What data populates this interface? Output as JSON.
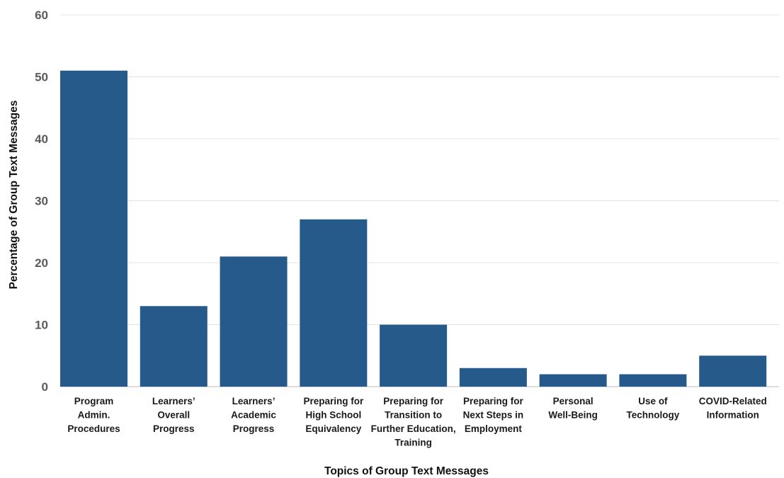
{
  "chart_data": {
    "type": "bar",
    "title": "",
    "xlabel": "Topics of Group Text Messages",
    "ylabel": "Percentage of Group Text Messages",
    "ylim": [
      0,
      60
    ],
    "yticks": [
      0,
      10,
      20,
      30,
      40,
      50,
      60
    ],
    "grid": true,
    "legend": "none",
    "bar_color": "#255a8a",
    "categories": [
      [
        "Program",
        "Admin.",
        "Procedures"
      ],
      [
        "Learners’",
        "Overall",
        "Progress"
      ],
      [
        "Learners’",
        "Academic",
        "Progress"
      ],
      [
        "Preparing for",
        "High School",
        "Equivalency"
      ],
      [
        "Preparing for",
        "Transition to",
        "Further Education,",
        "Training"
      ],
      [
        "Preparing for",
        "Next Steps in",
        "Employment"
      ],
      [
        "Personal",
        "Well-Being"
      ],
      [
        "Use of",
        "Technology"
      ],
      [
        "COVID-Related",
        "Information"
      ]
    ],
    "values": [
      51,
      13,
      21,
      27,
      10,
      3,
      2,
      2,
      5
    ]
  }
}
